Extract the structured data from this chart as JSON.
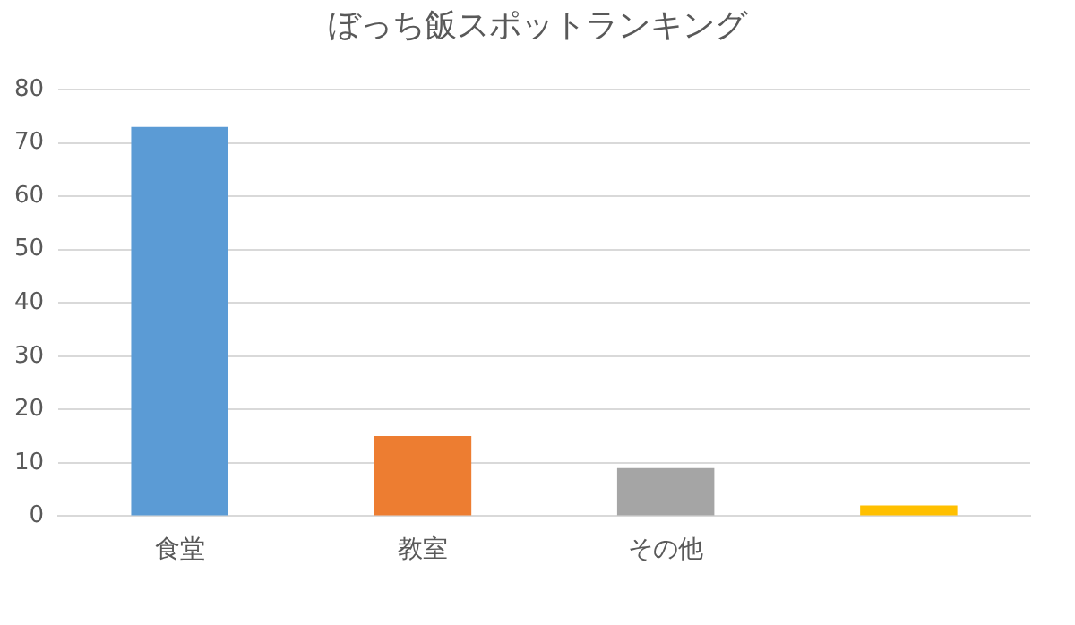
{
  "chart_data": {
    "type": "bar",
    "title": "ぼっち飯スポットランキング",
    "categories": [
      "食堂",
      "教室",
      "その他",
      null
    ],
    "values": [
      73,
      15,
      9,
      2
    ],
    "colors": [
      "#5b9bd5",
      "#ed7d31",
      "#a5a5a5",
      "#ffc000"
    ],
    "ylim": [
      0,
      80
    ],
    "yticks": [
      0,
      10,
      20,
      30,
      40,
      50,
      60,
      70,
      80
    ],
    "grid": "y",
    "legend": false
  }
}
